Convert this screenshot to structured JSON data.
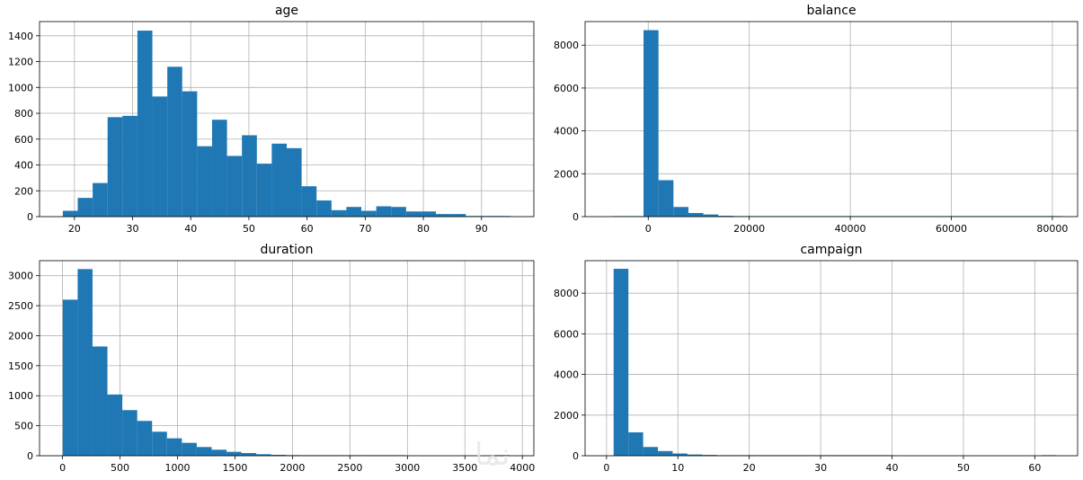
{
  "watermark": "نما",
  "colors": {
    "bar": "#1f77b4",
    "grid": "#b0b0b0",
    "axis": "#000000",
    "background": "#ffffff"
  },
  "chart_data": [
    {
      "type": "bar",
      "title": "age",
      "grid": true,
      "xlim": [
        14,
        99
      ],
      "ylim": [
        0,
        1510
      ],
      "xticks": [
        20,
        30,
        40,
        50,
        60,
        70,
        80,
        90
      ],
      "yticks": [
        0,
        200,
        400,
        600,
        800,
        1000,
        1200,
        1400
      ],
      "bin_start": 18,
      "bin_width": 2.5667,
      "values": [
        45,
        145,
        260,
        770,
        780,
        1440,
        930,
        1160,
        970,
        545,
        750,
        470,
        630,
        410,
        565,
        530,
        235,
        125,
        50,
        75,
        45,
        80,
        75,
        40,
        40,
        20,
        20,
        5,
        5,
        5
      ]
    },
    {
      "type": "bar",
      "title": "balance",
      "grid": true,
      "xlim": [
        -12500,
        85000
      ],
      "ylim": [
        0,
        9100
      ],
      "xticks": [
        0,
        20000,
        40000,
        60000,
        80000
      ],
      "yticks": [
        0,
        2000,
        4000,
        6000,
        8000
      ],
      "bin_start": -6850,
      "bin_width": 2960,
      "values": [
        5,
        20,
        8700,
        1700,
        450,
        170,
        100,
        40,
        25,
        15,
        10,
        10,
        8,
        5,
        5,
        5,
        3,
        2,
        1,
        1,
        1,
        1,
        1,
        1,
        1,
        1,
        1,
        1,
        1,
        1
      ]
    },
    {
      "type": "bar",
      "title": "duration",
      "grid": true,
      "xlim": [
        -200,
        4100
      ],
      "ylim": [
        0,
        3250
      ],
      "xticks": [
        0,
        500,
        1000,
        1500,
        2000,
        2500,
        3000,
        3500,
        4000
      ],
      "yticks": [
        0,
        500,
        1000,
        1500,
        2000,
        2500,
        3000
      ],
      "bin_start": 2,
      "bin_width": 129.5,
      "values": [
        2600,
        3110,
        1820,
        1020,
        760,
        580,
        400,
        290,
        215,
        145,
        100,
        65,
        45,
        25,
        15,
        10,
        8,
        5,
        3,
        2,
        1,
        1,
        1,
        0,
        0,
        0,
        0,
        0,
        0,
        1
      ]
    },
    {
      "type": "bar",
      "title": "campaign",
      "grid": true,
      "xlim": [
        -3,
        66
      ],
      "ylim": [
        0,
        9600
      ],
      "xticks": [
        0,
        10,
        20,
        30,
        40,
        50,
        60
      ],
      "yticks": [
        0,
        2000,
        4000,
        6000,
        8000
      ],
      "bin_start": 1,
      "bin_width": 2.0667,
      "values": [
        9200,
        1150,
        430,
        230,
        110,
        60,
        40,
        20,
        10,
        5,
        5,
        3,
        2,
        2,
        1,
        1,
        1,
        1,
        1,
        0,
        0,
        0,
        0,
        0,
        0,
        0,
        0,
        0,
        0,
        1
      ]
    }
  ]
}
